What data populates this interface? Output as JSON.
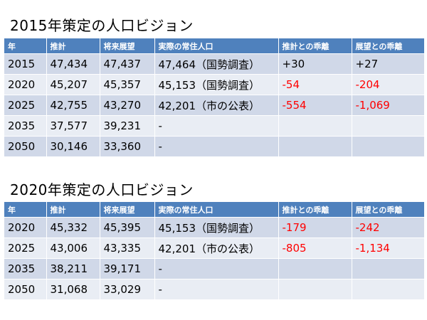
{
  "colors": {
    "header_bg": "#4f81bd",
    "row_odd": "#d0d8e8",
    "row_even": "#e9edf4",
    "negative_text": "#ff0000"
  },
  "headers": [
    "年",
    "推計",
    "将来展望",
    "実際の常住人口",
    "推計との乖離",
    "展望との乖離"
  ],
  "tables": [
    {
      "title": "2015年策定の人口ビジョン",
      "rows": [
        [
          "2015",
          "47,434",
          "47,437",
          "47,464（国勢調査）",
          "+30",
          "+27"
        ],
        [
          "2020",
          "45,207",
          "45,357",
          "45,153（国勢調査）",
          "-54",
          "-204"
        ],
        [
          "2025",
          "42,755",
          "43,270",
          "42,201（市の公表）",
          "-554",
          "-1,069"
        ],
        [
          "2035",
          "37,577",
          "39,231",
          "-",
          "",
          ""
        ],
        [
          "2050",
          "30,146",
          "33,360",
          "-",
          "",
          ""
        ]
      ]
    },
    {
      "title": "2020年策定の人口ビジョン",
      "rows": [
        [
          "2020",
          "45,332",
          "45,395",
          "45,153（国勢調査）",
          "-179",
          "-242"
        ],
        [
          "2025",
          "43,006",
          "43,335",
          "42,201（市の公表）",
          "-805",
          "-1,134"
        ],
        [
          "2035",
          "38,211",
          "39,171",
          "-",
          "",
          ""
        ],
        [
          "2050",
          "31,068",
          "33,029",
          "-",
          "",
          ""
        ]
      ]
    }
  ]
}
